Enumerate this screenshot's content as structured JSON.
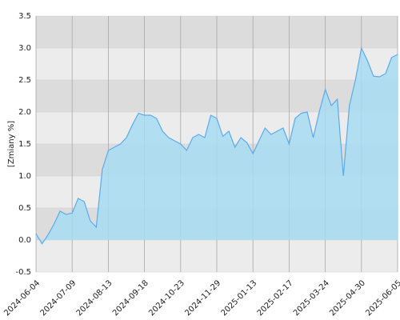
{
  "chart_data": {
    "type": "area",
    "y_label": "[Zmiany %]",
    "categories": [
      "2024-06-04",
      null,
      null,
      null,
      null,
      null,
      "2024-07-09",
      null,
      null,
      null,
      null,
      null,
      "2024-08-13",
      null,
      null,
      null,
      null,
      null,
      "2024-09-18",
      null,
      null,
      null,
      null,
      null,
      "2024-10-23",
      null,
      null,
      null,
      null,
      null,
      "2024-11-29",
      null,
      null,
      null,
      null,
      null,
      "2025-01-13",
      null,
      null,
      null,
      null,
      null,
      "2025-02-17",
      null,
      null,
      null,
      null,
      null,
      "2025-03-24",
      null,
      null,
      null,
      null,
      null,
      "2025-04-30",
      null,
      null,
      null,
      null,
      null,
      "2025-06-05"
    ],
    "values": [
      0.1,
      -0.06,
      0.08,
      0.25,
      0.45,
      0.4,
      0.42,
      0.65,
      0.6,
      0.3,
      0.2,
      1.1,
      1.4,
      1.45,
      1.5,
      1.6,
      1.8,
      1.98,
      1.95,
      1.95,
      1.9,
      1.7,
      1.6,
      1.55,
      1.5,
      1.4,
      1.6,
      1.65,
      1.6,
      1.95,
      1.9,
      1.62,
      1.7,
      1.45,
      1.6,
      1.52,
      1.35,
      1.55,
      1.75,
      1.65,
      1.7,
      1.75,
      1.5,
      1.9,
      1.98,
      2.0,
      1.6,
      2.0,
      2.35,
      2.1,
      2.2,
      1.0,
      2.1,
      2.5,
      3.0,
      2.8,
      2.56,
      2.55,
      2.6,
      2.85,
      2.9
    ],
    "color": "#5aaaf0",
    "ylim": [
      -0.5,
      3.5
    ],
    "yticks": [
      -0.5,
      {
        "value": 0,
        "label": "0.0"
      },
      0.5,
      {
        "value": 1,
        "label": "1.0"
      },
      1.5,
      {
        "value": 2,
        "label": "2.0"
      },
      2.5,
      {
        "value": 3,
        "label": "3.0"
      },
      3.5
    ],
    "grid": true
  }
}
